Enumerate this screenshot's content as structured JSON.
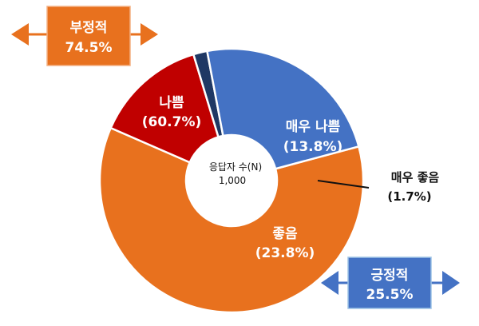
{
  "chart_data": {
    "type": "pie",
    "variant": "donut",
    "categories": [
      "나쁨",
      "매우 나쁨",
      "매우 좋음",
      "좋음"
    ],
    "values": [
      60.7,
      13.8,
      1.7,
      23.8
    ],
    "slices": [
      {
        "key": "bad",
        "name": "나쁨",
        "value": 60.7,
        "label": "(60.7%)",
        "color": "#E8711E"
      },
      {
        "key": "very_bad",
        "name": "매우 나쁨",
        "value": 13.8,
        "label": "(13.8%)",
        "color": "#C00000"
      },
      {
        "key": "very_good",
        "name": "매우 좋음",
        "value": 1.7,
        "label": "(1.7%)",
        "color": "#1F3864"
      },
      {
        "key": "good",
        "name": "좋음",
        "value": 23.8,
        "label": "(23.8%)",
        "color": "#4472C4"
      }
    ],
    "center": {
      "title": "응답자 수(N)",
      "value": "1,000"
    },
    "groups": {
      "negative": {
        "name": "부정적",
        "value": "74.5%",
        "color": "#E8711E"
      },
      "positive": {
        "name": "긍정적",
        "value": "25.5%",
        "color": "#4472C4"
      }
    }
  }
}
